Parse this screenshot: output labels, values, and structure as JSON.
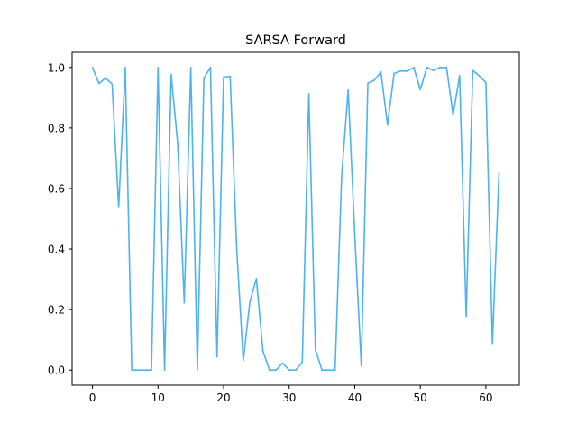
{
  "chart_data": {
    "type": "line",
    "title": "SARSA Forward",
    "xlabel": "",
    "ylabel": "",
    "xlim": [
      -3.1,
      65.1
    ],
    "ylim": [
      -0.05,
      1.05
    ],
    "xticks": [
      0,
      10,
      20,
      30,
      40,
      50,
      60
    ],
    "yticks": [
      0.0,
      0.2,
      0.4,
      0.6,
      0.8,
      1.0
    ],
    "xtick_labels": [
      "0",
      "10",
      "20",
      "30",
      "40",
      "50",
      "60"
    ],
    "ytick_labels": [
      "0.0",
      "0.2",
      "0.4",
      "0.6",
      "0.8",
      "1.0"
    ],
    "grid": false,
    "series": [
      {
        "color": "#4db3f0",
        "x": [
          0,
          1,
          2,
          3,
          4,
          5,
          6,
          7,
          8,
          9,
          10,
          11,
          12,
          13,
          14,
          15,
          16,
          17,
          18,
          19,
          20,
          21,
          22,
          23,
          24,
          25,
          26,
          27,
          28,
          29,
          30,
          31,
          32,
          33,
          34,
          35,
          36,
          37,
          38,
          39,
          40,
          41,
          42,
          43,
          44,
          45,
          46,
          47,
          48,
          49,
          50,
          51,
          52,
          53,
          54,
          55,
          56,
          57,
          58,
          59,
          60,
          61,
          62
        ],
        "y": [
          1.0,
          0.947,
          0.965,
          0.945,
          0.538,
          1.0,
          0.0,
          0.0,
          0.0,
          0.0,
          1.0,
          0.0,
          0.977,
          0.748,
          0.222,
          1.0,
          0.0,
          0.965,
          1.0,
          0.044,
          0.968,
          0.971,
          0.4,
          0.031,
          0.225,
          0.302,
          0.063,
          0.0,
          0.0,
          0.023,
          0.0,
          0.0,
          0.026,
          0.913,
          0.068,
          0.0,
          0.0,
          0.0,
          0.64,
          0.925,
          0.45,
          0.015,
          0.948,
          0.958,
          0.985,
          0.81,
          0.98,
          0.988,
          0.988,
          1.0,
          0.927,
          1.0,
          0.99,
          1.0,
          1.0,
          0.843,
          0.973,
          0.178,
          0.99,
          0.972,
          0.95,
          0.088,
          0.652
        ]
      }
    ]
  }
}
